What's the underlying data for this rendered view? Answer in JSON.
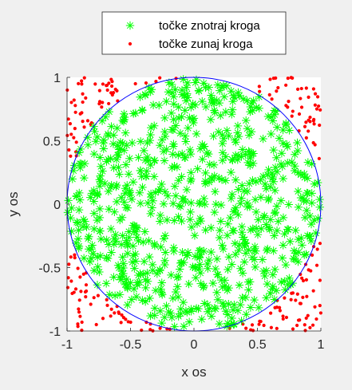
{
  "chart_data": {
    "type": "scatter",
    "xlabel": "x os",
    "ylabel": "y os",
    "xlim": [
      -1,
      1
    ],
    "ylim": [
      -1,
      1
    ],
    "xticks": [
      -1,
      -0.5,
      0,
      0.5,
      1
    ],
    "yticks": [
      -1,
      -0.5,
      0,
      0.5,
      1
    ],
    "xtick_labels": [
      "-1",
      "-0.5",
      "0",
      "0.5",
      "1"
    ],
    "ytick_labels": [
      "-1",
      "-0.5",
      "0",
      "0.5",
      "1"
    ],
    "grid": false,
    "legend_position": "north-outside",
    "circle": {
      "center": [
        0,
        0
      ],
      "radius": 1,
      "color": "#0000ff"
    },
    "series": [
      {
        "name": "točke znotraj kroga",
        "marker": "asterisk",
        "color": "#00ff00",
        "approx_count": 785,
        "region": "inside unit circle"
      },
      {
        "name": "točke zunaj kroga",
        "marker": "dot",
        "color": "#ff0000",
        "approx_count": 215,
        "region": "outside unit circle, inside square"
      }
    ]
  }
}
